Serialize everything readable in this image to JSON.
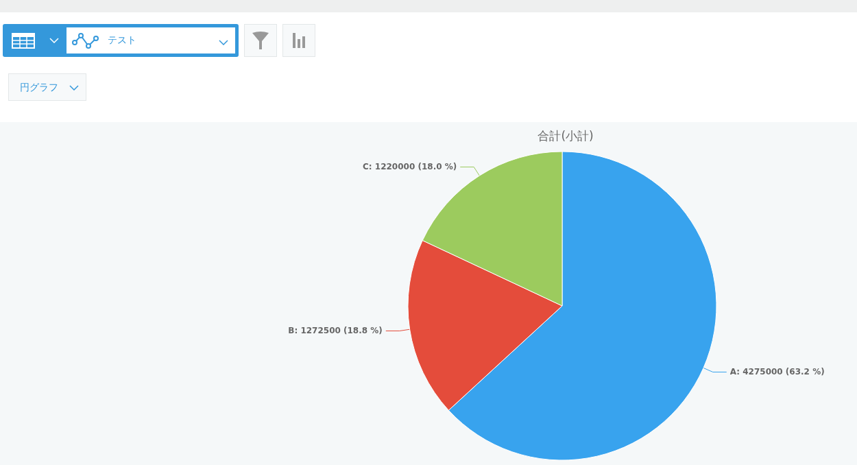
{
  "chart_data": {
    "type": "pie",
    "title": "合計(小計)",
    "categories": [
      "A",
      "B",
      "C"
    ],
    "values": [
      4275000,
      1272500,
      1220000
    ],
    "colors": [
      "#38a3ee",
      "#e44c3b",
      "#9ccb5e"
    ],
    "value_labels": [
      "4275000 (63.2 %)",
      "1272500 (18.8 %)",
      "1220000 (18.0 %)"
    ],
    "annotations": [
      "テスト",
      "円グラフ"
    ],
    "legend": false
  }
}
